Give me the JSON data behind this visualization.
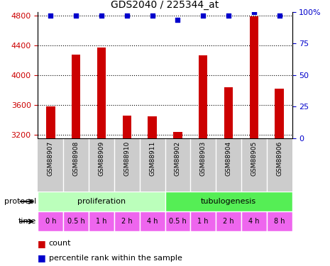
{
  "title": "GDS2040 / 225344_at",
  "samples": [
    "GSM88907",
    "GSM88908",
    "GSM88909",
    "GSM88910",
    "GSM88911",
    "GSM88902",
    "GSM88903",
    "GSM88904",
    "GSM88905",
    "GSM88906"
  ],
  "counts": [
    3580,
    4280,
    4370,
    3460,
    3450,
    3240,
    4270,
    3840,
    4790,
    3820
  ],
  "percentile_ranks": [
    97,
    97,
    97,
    97,
    97,
    94,
    97,
    97,
    100,
    97
  ],
  "ylim_left": [
    3150,
    4850
  ],
  "ylim_right": [
    0,
    100
  ],
  "yticks_left": [
    3200,
    3600,
    4000,
    4400,
    4800
  ],
  "yticks_right": [
    0,
    25,
    50,
    75,
    100
  ],
  "protocols": [
    {
      "label": "proliferation",
      "span": [
        0,
        5
      ],
      "color": "#bbffbb"
    },
    {
      "label": "tubulogenesis",
      "span": [
        5,
        10
      ],
      "color": "#55ee55"
    }
  ],
  "times": [
    "0 h",
    "0.5 h",
    "1 h",
    "2 h",
    "4 h",
    "0.5 h",
    "1 h",
    "2 h",
    "4 h",
    "8 h"
  ],
  "time_color": "#ee66ee",
  "sample_bg_color": "#cccccc",
  "bar_color": "#cc0000",
  "dot_color": "#0000cc",
  "bar_width": 0.35,
  "background_color": "#ffffff",
  "grid_color": "#000000",
  "left_label_color": "#cc0000",
  "right_label_color": "#0000cc"
}
